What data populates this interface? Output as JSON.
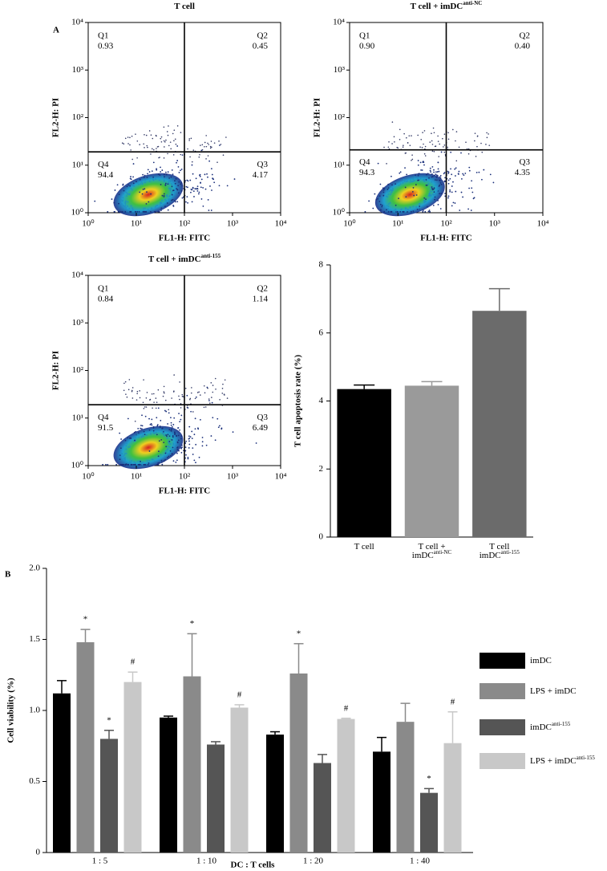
{
  "chart_data": [
    {
      "type": "flow",
      "panel_label": "A",
      "title": "T cell",
      "xlabel": "FL1-H: FITC",
      "ylabel": "FL2-H: PI",
      "log": true,
      "xlim": [
        1,
        10000
      ],
      "ylim": [
        1,
        10000
      ],
      "xticks": [
        {
          "value": 1,
          "label": "10⁰"
        },
        {
          "value": 10,
          "label": "10¹"
        },
        {
          "value": 100,
          "label": "10²"
        },
        {
          "value": 1000,
          "label": "10³"
        },
        {
          "value": 10000,
          "label": "10⁴"
        }
      ],
      "yticks": [
        {
          "value": 1,
          "label": "10⁰"
        },
        {
          "value": 10,
          "label": "10¹"
        },
        {
          "value": 100,
          "label": "10²"
        },
        {
          "value": 1000,
          "label": "10³"
        },
        {
          "value": 10000,
          "label": "10⁴"
        }
      ],
      "gate": [
        100,
        19
      ],
      "quadrants": [
        {
          "name": "Q1",
          "value": 0.93
        },
        {
          "name": "Q2",
          "value": 0.45
        },
        {
          "name": "Q3",
          "value": 4.17
        },
        {
          "name": "Q4",
          "value": 94.4
        }
      ]
    },
    {
      "type": "flow",
      "title": "T cell + imDC",
      "title_sup": "anti-NC",
      "xlabel": "FL1-H: FITC",
      "ylabel": "FL2-H: PI",
      "log": true,
      "xlim": [
        1,
        10000
      ],
      "ylim": [
        1,
        10000
      ],
      "xticks": [
        {
          "value": 1,
          "label": "10⁰"
        },
        {
          "value": 10,
          "label": "10¹"
        },
        {
          "value": 100,
          "label": "10²"
        },
        {
          "value": 1000,
          "label": "10³"
        },
        {
          "value": 10000,
          "label": "10⁴"
        }
      ],
      "yticks": [
        {
          "value": 1,
          "label": "10⁰"
        },
        {
          "value": 10,
          "label": "10¹"
        },
        {
          "value": 100,
          "label": "10²"
        },
        {
          "value": 1000,
          "label": "10³"
        },
        {
          "value": 10000,
          "label": "10⁴"
        }
      ],
      "gate": [
        100,
        21
      ],
      "quadrants": [
        {
          "name": "Q1",
          "value": 0.9,
          "label": "0.90"
        },
        {
          "name": "Q2",
          "value": 0.4,
          "label": "0.40"
        },
        {
          "name": "Q3",
          "value": 4.35
        },
        {
          "name": "Q4",
          "value": 94.3
        }
      ]
    },
    {
      "type": "flow",
      "title": "T cell + imDC",
      "title_sup": "anti-155",
      "xlabel": "FL1-H: FITC",
      "ylabel": "FL2-H: PI",
      "log": true,
      "xlim": [
        1,
        10000
      ],
      "ylim": [
        1,
        10000
      ],
      "xticks": [
        {
          "value": 1,
          "label": "10⁰"
        },
        {
          "value": 10,
          "label": "10¹"
        },
        {
          "value": 100,
          "label": "10²"
        },
        {
          "value": 1000,
          "label": "10³"
        },
        {
          "value": 10000,
          "label": "10⁴"
        }
      ],
      "yticks": [
        {
          "value": 1,
          "label": "10⁰"
        },
        {
          "value": 10,
          "label": "10¹"
        },
        {
          "value": 100,
          "label": "10²"
        },
        {
          "value": 1000,
          "label": "10³"
        },
        {
          "value": 10000,
          "label": "10⁴"
        }
      ],
      "gate": [
        100,
        19
      ],
      "quadrants": [
        {
          "name": "Q1",
          "value": 0.84
        },
        {
          "name": "Q2",
          "value": 1.14
        },
        {
          "name": "Q3",
          "value": 6.49
        },
        {
          "name": "Q4",
          "value": 91.5
        }
      ]
    },
    {
      "type": "bar",
      "ylabel": "T cell apoptosis rate (%)",
      "categories": [
        [
          "T cell"
        ],
        [
          "T cell +",
          "imDC"
        ],
        [
          "T cell",
          "imDC"
        ]
      ],
      "category_sups": [
        null,
        "anti-NC",
        "anti-155"
      ],
      "values": [
        4.35,
        4.45,
        6.65
      ],
      "errors": [
        0.12,
        0.12,
        0.65
      ],
      "colors": [
        "#000000",
        "#9a9a9a",
        "#6b6b6b"
      ],
      "ylim": [
        0,
        8
      ],
      "yticks": [
        0,
        2,
        4,
        6,
        8
      ]
    },
    {
      "type": "grouped_bar",
      "panel_label": "B",
      "xlabel": "DC : T cells",
      "ylabel": "Cell viability (%)",
      "categories": [
        "1 : 5",
        "1 : 10",
        "1 : 20",
        "1 : 40"
      ],
      "ylim": [
        0,
        2
      ],
      "yticks": [
        0,
        0.5,
        {
          "value": 1,
          "label": "1.0"
        },
        1.5,
        {
          "value": 2,
          "label": "2.0"
        }
      ],
      "series": [
        {
          "name": "imDC",
          "color": "#000000",
          "values": [
            1.12,
            0.95,
            0.83,
            0.71
          ],
          "errors": [
            0.09,
            0.01,
            0.02,
            0.1
          ],
          "annotations": [
            null,
            null,
            null,
            null
          ]
        },
        {
          "name": "LPS + imDC",
          "color": "#8a8a8a",
          "values": [
            1.48,
            1.24,
            1.26,
            0.92
          ],
          "errors": [
            0.09,
            0.3,
            0.21,
            0.13
          ],
          "annotations": [
            "*",
            "*",
            "*",
            null
          ]
        },
        {
          "name": "imDC",
          "name_sup": "anti-155",
          "color": "#555555",
          "values": [
            0.8,
            0.76,
            0.63,
            0.42
          ],
          "errors": [
            0.06,
            0.02,
            0.06,
            0.03
          ],
          "annotations": [
            "*",
            null,
            null,
            "*"
          ]
        },
        {
          "name": "LPS + imDC",
          "name_sup": "anti-155",
          "color": "#c8c8c8",
          "values": [
            1.2,
            1.02,
            0.94,
            0.77
          ],
          "errors": [
            0.07,
            0.02,
            0.005,
            0.22
          ],
          "annotations": [
            "#",
            "#",
            "#",
            "#"
          ]
        }
      ]
    }
  ]
}
